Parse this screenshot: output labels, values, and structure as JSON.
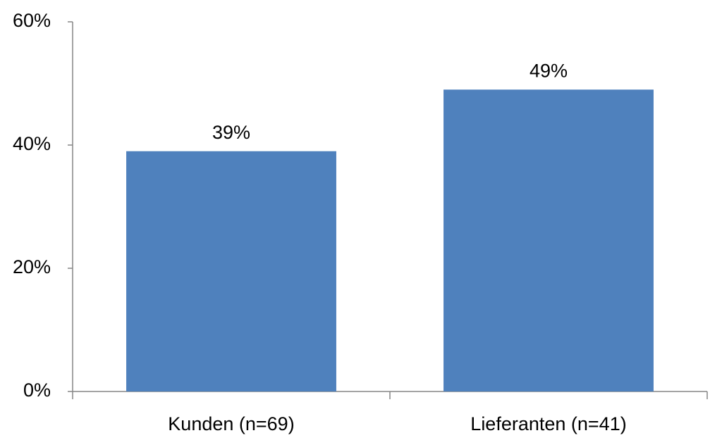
{
  "chart_data": {
    "type": "bar",
    "categories": [
      "Kunden (n=69)",
      "Lieferanten (n=41)"
    ],
    "values": [
      39,
      49
    ],
    "value_labels": [
      "39%",
      "49%"
    ],
    "color": "#4f81bd",
    "ylim": [
      0,
      60
    ],
    "yticks": [
      {
        "value": 0,
        "label": "0%"
      },
      {
        "value": 20,
        "label": "20%"
      },
      {
        "value": 40,
        "label": "40%"
      },
      {
        "value": 60,
        "label": "60%"
      }
    ],
    "grid": false
  }
}
